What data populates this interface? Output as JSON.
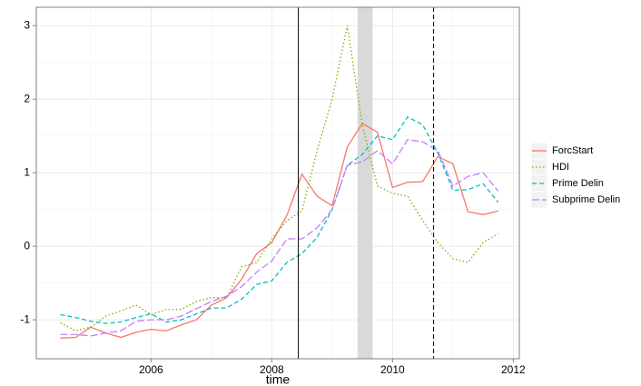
{
  "chart_data": {
    "type": "line",
    "x_label": "time",
    "x": [
      2004.5,
      2004.75,
      2005,
      2005.25,
      2005.5,
      2005.75,
      2006,
      2006.25,
      2006.5,
      2006.75,
      2007,
      2007.25,
      2007.5,
      2007.75,
      2008,
      2008.25,
      2008.5,
      2008.75,
      2009,
      2009.25,
      2009.5,
      2009.75,
      2010,
      2010.25,
      2010.5,
      2010.75,
      2011,
      2011.25,
      2011.5,
      2011.75
    ],
    "series": [
      {
        "name": "ForcStart",
        "color": "#F8766D",
        "dash": "solid",
        "values": [
          -1.25,
          -1.24,
          -1.1,
          -1.18,
          -1.24,
          -1.17,
          -1.13,
          -1.15,
          -1.07,
          -1.0,
          -0.8,
          -0.7,
          -0.45,
          -0.1,
          0.05,
          0.42,
          0.98,
          0.68,
          0.55,
          1.35,
          1.67,
          1.55,
          0.8,
          0.87,
          0.88,
          1.22,
          1.12,
          0.47,
          0.43,
          0.48
        ]
      },
      {
        "name": "HDI",
        "color": "#7CAE00",
        "dash": "dotted",
        "values": [
          -1.04,
          -1.15,
          -1.1,
          -0.95,
          -0.88,
          -0.8,
          -0.93,
          -0.86,
          -0.86,
          -0.75,
          -0.7,
          -0.7,
          -0.28,
          -0.22,
          0.1,
          0.35,
          0.48,
          1.3,
          2.0,
          3.0,
          1.65,
          0.82,
          0.72,
          0.68,
          0.35,
          0.05,
          -0.17,
          -0.22,
          0.05,
          0.17
        ]
      },
      {
        "name": "Prime Delin",
        "color": "#00BFC4",
        "dash": "dashed",
        "values": [
          -0.93,
          -0.97,
          -1.02,
          -1.05,
          -1.03,
          -0.97,
          -0.92,
          -1.03,
          -1.0,
          -0.92,
          -0.84,
          -0.84,
          -0.72,
          -0.52,
          -0.47,
          -0.22,
          -0.1,
          0.12,
          0.5,
          1.1,
          1.25,
          1.5,
          1.45,
          1.76,
          1.65,
          1.27,
          0.76,
          0.77,
          0.85,
          0.6
        ]
      },
      {
        "name": "Subprime Delin",
        "color": "#C77CFF",
        "dash": "longdash",
        "values": [
          -1.2,
          -1.2,
          -1.22,
          -1.18,
          -1.15,
          -1.02,
          -1.0,
          -1.0,
          -0.95,
          -0.85,
          -0.75,
          -0.68,
          -0.55,
          -0.35,
          -0.2,
          0.1,
          0.1,
          0.25,
          0.5,
          1.1,
          1.15,
          1.3,
          1.12,
          1.45,
          1.42,
          1.3,
          0.82,
          0.95,
          1.0,
          0.75
        ]
      }
    ],
    "xlim": [
      2004.1,
      2012.1
    ],
    "xticks": [
      2006,
      2008,
      2010,
      2012
    ],
    "ylim": [
      -1.53,
      3.25
    ],
    "yticks": [
      -1,
      0,
      1,
      2,
      3
    ],
    "grid": true,
    "minor_grid": true,
    "vlines": [
      {
        "x": 2008.44,
        "style": "solid"
      },
      {
        "x": 2010.68,
        "style": "dashed"
      }
    ],
    "shaded": [
      2009.42,
      2009.67
    ],
    "legend": "right"
  }
}
